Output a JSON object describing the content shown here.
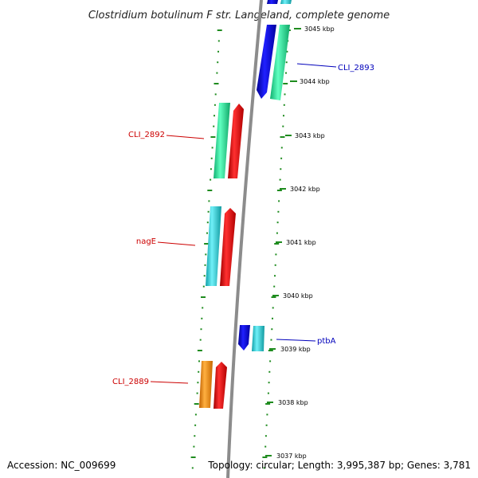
{
  "title": "Clostridium botulinum F str. Langeland, complete genome",
  "ticks": [
    "3045 kbp",
    "3044 kbp",
    "3043 kbp",
    "3042 kbp",
    "3041 kbp",
    "3040 kbp",
    "3039 kbp",
    "3038 kbp",
    "3037 kbp"
  ],
  "gene_labels": [
    {
      "text": "CLI_2893",
      "color": "#0000bb"
    },
    {
      "text": "CLI_2892",
      "color": "#cc0000"
    },
    {
      "text": "nagE",
      "color": "#cc0000"
    },
    {
      "text": "ptbA",
      "color": "#0000bb"
    },
    {
      "text": "CLI_2889",
      "color": "#cc0000"
    }
  ],
  "colors": {
    "backbone": "#8c8c8c",
    "tick_marks": "#1f8c1f",
    "blue": "#1010e0",
    "green": "#20f090",
    "red": "#f01010",
    "cyan": "#20d0d8",
    "orange": "#ff9010"
  },
  "footer": {
    "accession": "Accession: NC_009699",
    "topology": "Topology: circular; Length: 3,995,387 bp; Genes: 3,781"
  }
}
